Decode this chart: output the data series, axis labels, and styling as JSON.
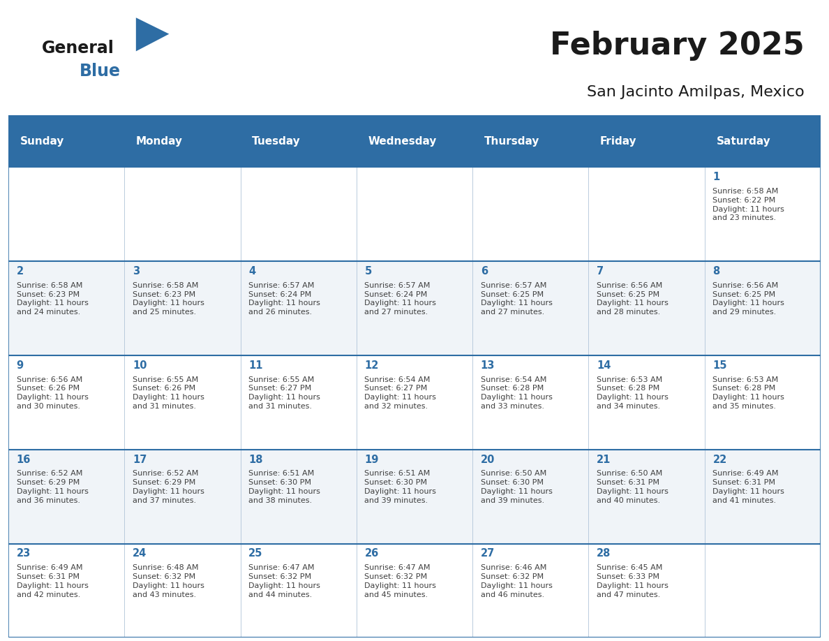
{
  "title": "February 2025",
  "subtitle": "San Jacinto Amilpas, Mexico",
  "header_bg": "#2E6DA4",
  "header_text": "#FFFFFF",
  "cell_bg_white": "#FFFFFF",
  "cell_bg_gray": "#F0F4F8",
  "day_number_color": "#2E6DA4",
  "text_color": "#404040",
  "line_color": "#2E6DA4",
  "grid_line_color": "#B0C4D8",
  "days_of_week": [
    "Sunday",
    "Monday",
    "Tuesday",
    "Wednesday",
    "Thursday",
    "Friday",
    "Saturday"
  ],
  "weeks": [
    [
      {
        "day": null,
        "info": null
      },
      {
        "day": null,
        "info": null
      },
      {
        "day": null,
        "info": null
      },
      {
        "day": null,
        "info": null
      },
      {
        "day": null,
        "info": null
      },
      {
        "day": null,
        "info": null
      },
      {
        "day": 1,
        "info": "Sunrise: 6:58 AM\nSunset: 6:22 PM\nDaylight: 11 hours\nand 23 minutes."
      }
    ],
    [
      {
        "day": 2,
        "info": "Sunrise: 6:58 AM\nSunset: 6:23 PM\nDaylight: 11 hours\nand 24 minutes."
      },
      {
        "day": 3,
        "info": "Sunrise: 6:58 AM\nSunset: 6:23 PM\nDaylight: 11 hours\nand 25 minutes."
      },
      {
        "day": 4,
        "info": "Sunrise: 6:57 AM\nSunset: 6:24 PM\nDaylight: 11 hours\nand 26 minutes."
      },
      {
        "day": 5,
        "info": "Sunrise: 6:57 AM\nSunset: 6:24 PM\nDaylight: 11 hours\nand 27 minutes."
      },
      {
        "day": 6,
        "info": "Sunrise: 6:57 AM\nSunset: 6:25 PM\nDaylight: 11 hours\nand 27 minutes."
      },
      {
        "day": 7,
        "info": "Sunrise: 6:56 AM\nSunset: 6:25 PM\nDaylight: 11 hours\nand 28 minutes."
      },
      {
        "day": 8,
        "info": "Sunrise: 6:56 AM\nSunset: 6:25 PM\nDaylight: 11 hours\nand 29 minutes."
      }
    ],
    [
      {
        "day": 9,
        "info": "Sunrise: 6:56 AM\nSunset: 6:26 PM\nDaylight: 11 hours\nand 30 minutes."
      },
      {
        "day": 10,
        "info": "Sunrise: 6:55 AM\nSunset: 6:26 PM\nDaylight: 11 hours\nand 31 minutes."
      },
      {
        "day": 11,
        "info": "Sunrise: 6:55 AM\nSunset: 6:27 PM\nDaylight: 11 hours\nand 31 minutes."
      },
      {
        "day": 12,
        "info": "Sunrise: 6:54 AM\nSunset: 6:27 PM\nDaylight: 11 hours\nand 32 minutes."
      },
      {
        "day": 13,
        "info": "Sunrise: 6:54 AM\nSunset: 6:28 PM\nDaylight: 11 hours\nand 33 minutes."
      },
      {
        "day": 14,
        "info": "Sunrise: 6:53 AM\nSunset: 6:28 PM\nDaylight: 11 hours\nand 34 minutes."
      },
      {
        "day": 15,
        "info": "Sunrise: 6:53 AM\nSunset: 6:28 PM\nDaylight: 11 hours\nand 35 minutes."
      }
    ],
    [
      {
        "day": 16,
        "info": "Sunrise: 6:52 AM\nSunset: 6:29 PM\nDaylight: 11 hours\nand 36 minutes."
      },
      {
        "day": 17,
        "info": "Sunrise: 6:52 AM\nSunset: 6:29 PM\nDaylight: 11 hours\nand 37 minutes."
      },
      {
        "day": 18,
        "info": "Sunrise: 6:51 AM\nSunset: 6:30 PM\nDaylight: 11 hours\nand 38 minutes."
      },
      {
        "day": 19,
        "info": "Sunrise: 6:51 AM\nSunset: 6:30 PM\nDaylight: 11 hours\nand 39 minutes."
      },
      {
        "day": 20,
        "info": "Sunrise: 6:50 AM\nSunset: 6:30 PM\nDaylight: 11 hours\nand 39 minutes."
      },
      {
        "day": 21,
        "info": "Sunrise: 6:50 AM\nSunset: 6:31 PM\nDaylight: 11 hours\nand 40 minutes."
      },
      {
        "day": 22,
        "info": "Sunrise: 6:49 AM\nSunset: 6:31 PM\nDaylight: 11 hours\nand 41 minutes."
      }
    ],
    [
      {
        "day": 23,
        "info": "Sunrise: 6:49 AM\nSunset: 6:31 PM\nDaylight: 11 hours\nand 42 minutes."
      },
      {
        "day": 24,
        "info": "Sunrise: 6:48 AM\nSunset: 6:32 PM\nDaylight: 11 hours\nand 43 minutes."
      },
      {
        "day": 25,
        "info": "Sunrise: 6:47 AM\nSunset: 6:32 PM\nDaylight: 11 hours\nand 44 minutes."
      },
      {
        "day": 26,
        "info": "Sunrise: 6:47 AM\nSunset: 6:32 PM\nDaylight: 11 hours\nand 45 minutes."
      },
      {
        "day": 27,
        "info": "Sunrise: 6:46 AM\nSunset: 6:32 PM\nDaylight: 11 hours\nand 46 minutes."
      },
      {
        "day": 28,
        "info": "Sunrise: 6:45 AM\nSunset: 6:33 PM\nDaylight: 11 hours\nand 47 minutes."
      },
      {
        "day": null,
        "info": null
      }
    ]
  ],
  "logo_general_color": "#1a1a1a",
  "logo_blue_color": "#2E6DA4",
  "figsize": [
    11.88,
    9.18
  ],
  "dpi": 100
}
